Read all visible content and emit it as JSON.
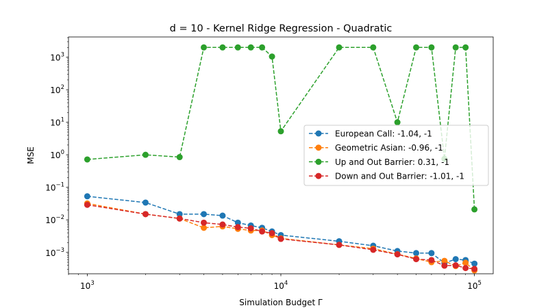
{
  "chart_data": {
    "type": "line",
    "title": "d = 10 - Kernel Ridge Regression - Quadratic",
    "xlabel": "Simulation Budget Γ",
    "ylabel": "MSE",
    "xscale": "log",
    "yscale": "log",
    "xlim": [
      800,
      125000
    ],
    "ylim": [
      0.00022,
      4200
    ],
    "xticks": [
      {
        "value": 1000,
        "base": "10",
        "exp": "3"
      },
      {
        "value": 10000,
        "base": "10",
        "exp": "4"
      },
      {
        "value": 100000,
        "base": "10",
        "exp": "5"
      }
    ],
    "yticks": [
      {
        "value": 0.001,
        "base": "10",
        "exp": "−3"
      },
      {
        "value": 0.01,
        "base": "10",
        "exp": "−2"
      },
      {
        "value": 0.1,
        "base": "10",
        "exp": "−1"
      },
      {
        "value": 1,
        "base": "10",
        "exp": "0"
      },
      {
        "value": 10,
        "base": "10",
        "exp": "1"
      },
      {
        "value": 100,
        "base": "10",
        "exp": "2"
      },
      {
        "value": 1000,
        "base": "10",
        "exp": "3"
      }
    ],
    "grid": false,
    "legend_position": "center-right",
    "x": [
      1000,
      2000,
      3000,
      4000,
      5000,
      6000,
      7000,
      8000,
      9000,
      10000,
      20000,
      30000,
      40000,
      50000,
      60000,
      70000,
      80000,
      90000,
      100000
    ],
    "series": [
      {
        "name": "European Call: -1.04, -1",
        "color": "#1f77b4",
        "values": [
          0.053,
          0.034,
          0.015,
          0.015,
          0.0135,
          0.0082,
          0.0067,
          0.0057,
          0.0044,
          0.0034,
          0.0022,
          0.0016,
          0.0011,
          0.00095,
          0.00095,
          0.00047,
          0.00062,
          0.00058,
          0.00045
        ]
      },
      {
        "name": "Geometric Asian: -0.96, -1",
        "color": "#ff7f0e",
        "values": [
          0.032,
          0.015,
          0.011,
          0.0057,
          0.0063,
          0.0053,
          0.0047,
          0.0047,
          0.0034,
          0.0027,
          0.0017,
          0.0013,
          0.00088,
          0.00065,
          0.0005,
          0.00055,
          0.00038,
          0.00048,
          0.00028
        ]
      },
      {
        "name": "Up and Out Barrier: 0.31, -1",
        "color": "#2ca02c",
        "values": [
          0.72,
          1.0,
          0.85,
          2000,
          2000,
          2000,
          2000,
          2000,
          1050,
          5.3,
          2000,
          2000,
          10,
          2000,
          2000,
          0.75,
          2000,
          2000,
          0.021
        ]
      },
      {
        "name": "Down and Out Barrier: -1.01, -1",
        "color": "#d62728",
        "values": [
          0.029,
          0.015,
          0.011,
          0.0082,
          0.0072,
          0.006,
          0.0055,
          0.0044,
          0.0039,
          0.0026,
          0.0017,
          0.0012,
          0.00087,
          0.00062,
          0.00058,
          0.00039,
          0.0004,
          0.00033,
          0.00031
        ]
      }
    ]
  }
}
